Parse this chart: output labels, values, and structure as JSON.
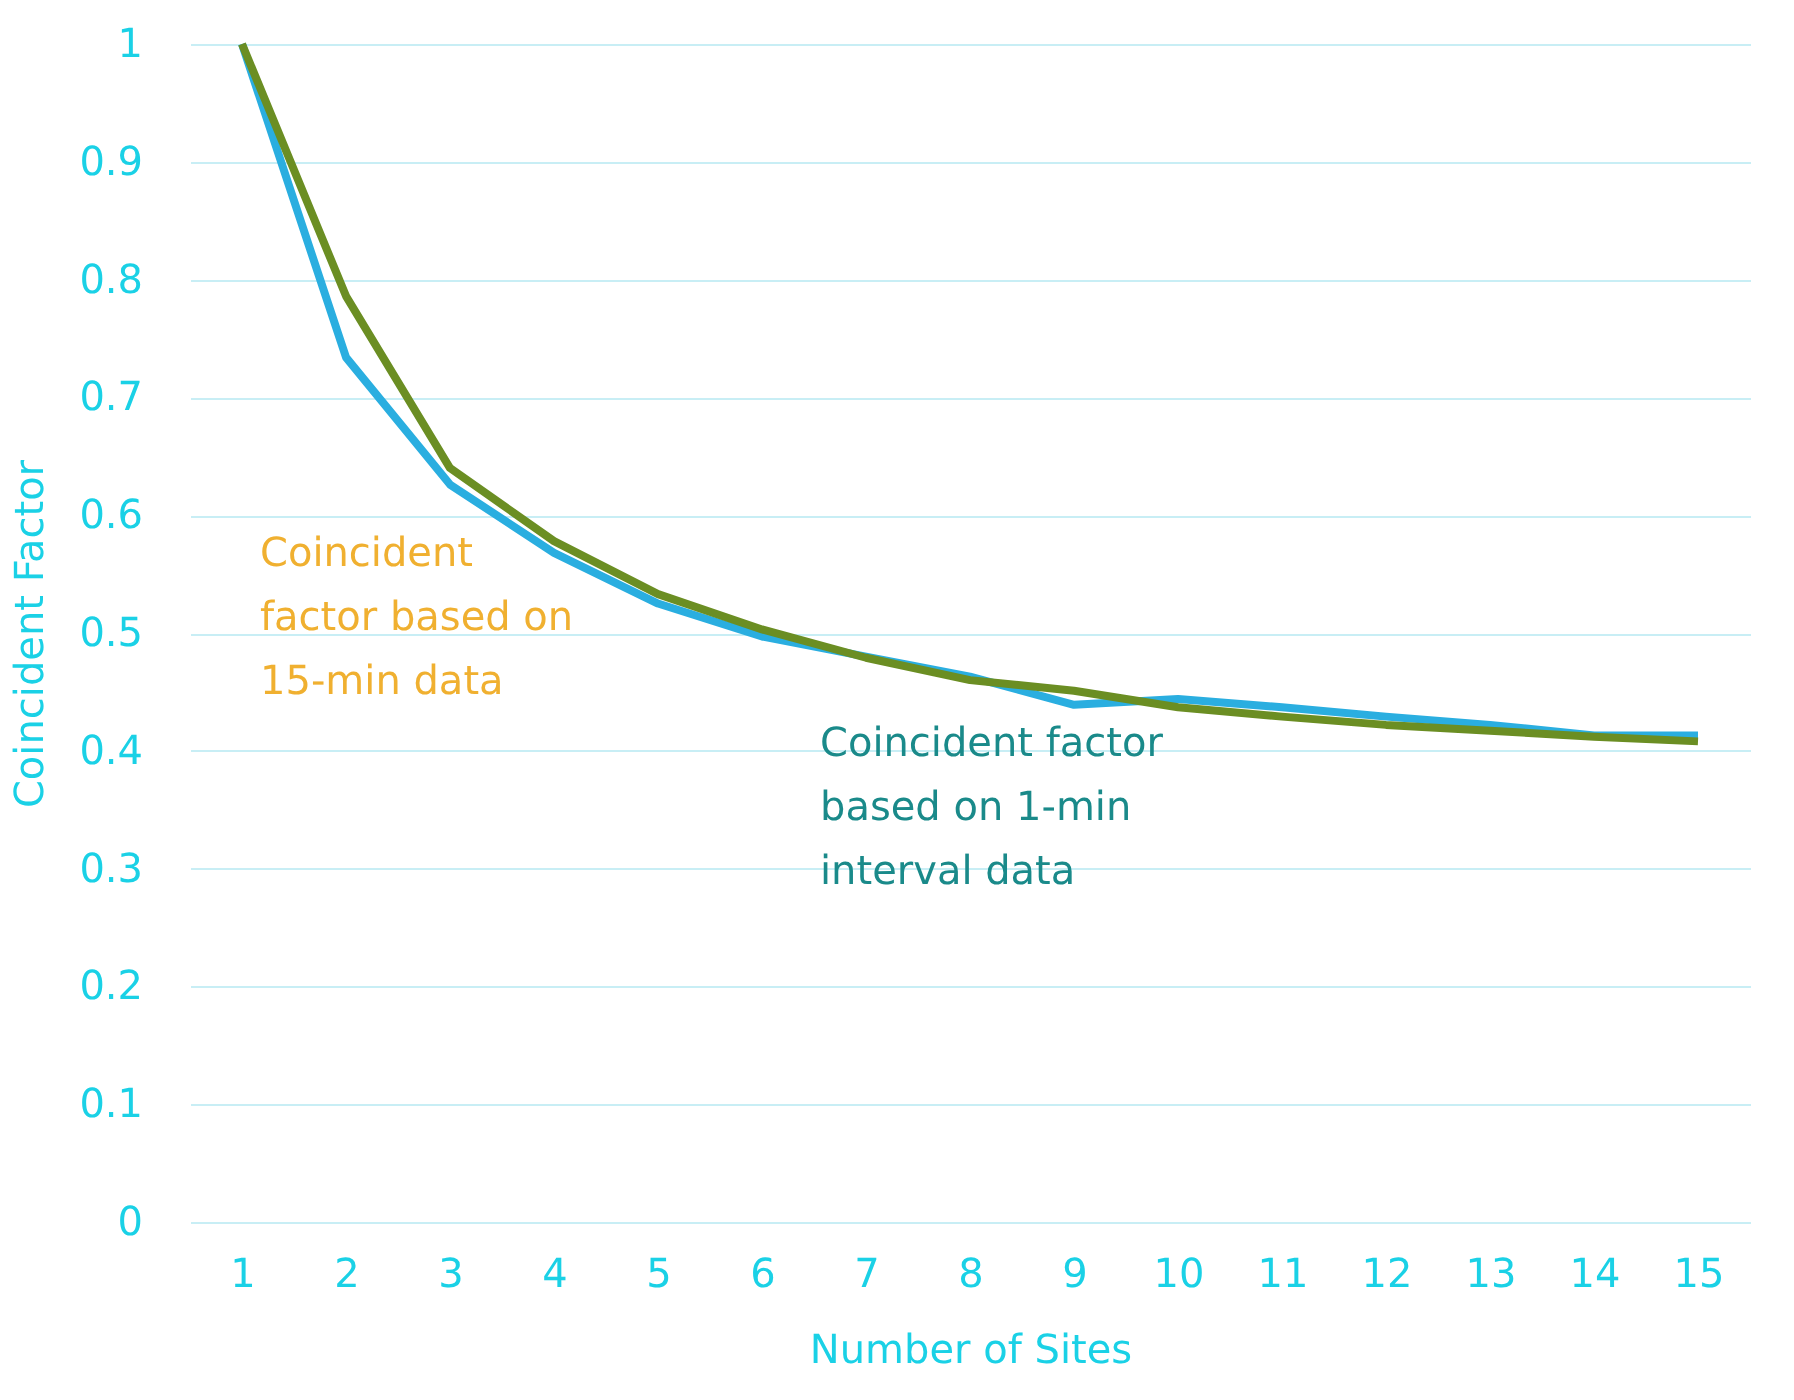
{
  "chart_data": {
    "type": "line",
    "xlabel": "Number of Sites",
    "ylabel": "Coincident Factor",
    "x": [
      1,
      2,
      3,
      4,
      5,
      6,
      7,
      8,
      9,
      10,
      11,
      12,
      13,
      14,
      15
    ],
    "series": [
      {
        "color": "#2aaee0",
        "values": [
          1,
          0.734,
          0.626,
          0.568,
          0.525,
          0.497,
          0.48,
          0.463,
          0.439,
          0.444,
          0.437,
          0.429,
          0.422,
          0.413,
          0.413
        ]
      },
      {
        "color": "#6b8e23",
        "values": [
          1,
          0.786,
          0.64,
          0.578,
          0.533,
          0.503,
          0.479,
          0.46,
          0.451,
          0.437,
          0.429,
          0.422,
          0.417,
          0.412,
          0.408
        ]
      }
    ],
    "annotations": [
      "Coincident\nfactor based on\n15-min data",
      "Coincident factor\nbased on 1-min\ninterval data"
    ],
    "xlim": [
      0.5,
      15.5
    ],
    "xticks": [
      1,
      2,
      3,
      4,
      5,
      6,
      7,
      8,
      9,
      10,
      11,
      12,
      13,
      14,
      15
    ],
    "ylim": [
      0,
      1
    ],
    "yticks": [
      0,
      0.1,
      0.2,
      0.3,
      0.4,
      0.5,
      0.6,
      0.7,
      0.8,
      0.9,
      1
    ],
    "grid": "y",
    "marker": "none",
    "line_style": "solid"
  }
}
